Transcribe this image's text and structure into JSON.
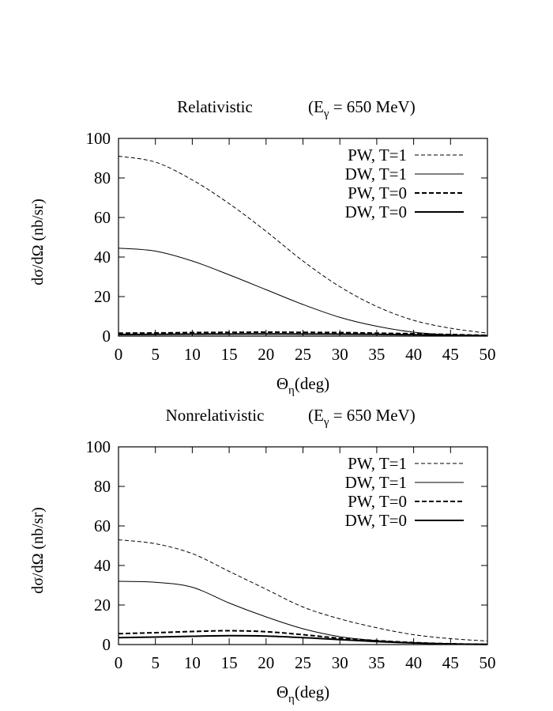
{
  "chart_data": [
    {
      "type": "line",
      "title": "Relativistic",
      "subtitle_prefix": "(E",
      "subtitle_sub": "γ",
      "subtitle_suffix": " = 650 MeV)",
      "xlabel_main": "Θ",
      "xlabel_sub": "η",
      "xlabel_unit": "(deg)",
      "ylabel": "dσ/dΩ (nb/sr)",
      "xlim": [
        0,
        50
      ],
      "ylim": [
        0,
        100
      ],
      "xticks": [
        0,
        5,
        10,
        15,
        20,
        25,
        30,
        35,
        40,
        45,
        50
      ],
      "yticks": [
        0,
        20,
        40,
        60,
        80,
        100
      ],
      "x": [
        0,
        5,
        10,
        15,
        20,
        25,
        30,
        35,
        40,
        45,
        50
      ],
      "series": [
        {
          "name": "PW, T=1",
          "style": "dashed-thin",
          "values": [
            91,
            88,
            79,
            67,
            53,
            38,
            25,
            15,
            8,
            4,
            1.5
          ]
        },
        {
          "name": "DW, T=1",
          "style": "solid-thin",
          "values": [
            44.5,
            43,
            38,
            31,
            23.5,
            16,
            9.5,
            5,
            2,
            0.6,
            0.1
          ]
        },
        {
          "name": "PW, T=0",
          "style": "dashed-thick",
          "values": [
            1.5,
            1.6,
            1.8,
            1.9,
            2.0,
            1.9,
            1.8,
            1.5,
            1.2,
            0.8,
            0.4
          ]
        },
        {
          "name": "DW, T=0",
          "style": "solid-thick",
          "values": [
            0.8,
            0.9,
            1.0,
            1.05,
            1.1,
            1.05,
            1.0,
            0.9,
            0.7,
            0.5,
            0.2
          ]
        }
      ]
    },
    {
      "type": "line",
      "title": "Nonrelativistic",
      "subtitle_prefix": "(E",
      "subtitle_sub": "γ",
      "subtitle_suffix": " = 650 MeV)",
      "xlabel_main": "Θ",
      "xlabel_sub": "η",
      "xlabel_unit": "(deg)",
      "ylabel": "dσ/dΩ (nb/sr)",
      "xlim": [
        0,
        50
      ],
      "ylim": [
        0,
        100
      ],
      "xticks": [
        0,
        5,
        10,
        15,
        20,
        25,
        30,
        35,
        40,
        45,
        50
      ],
      "yticks": [
        0,
        20,
        40,
        60,
        80,
        100
      ],
      "x": [
        0,
        5,
        10,
        15,
        20,
        25,
        30,
        35,
        40,
        45,
        50
      ],
      "series": [
        {
          "name": "PW, T=1",
          "style": "dashed-thin",
          "values": [
            53,
            51,
            46,
            37,
            28,
            19,
            13,
            8.5,
            5,
            3,
            1.8
          ]
        },
        {
          "name": "DW, T=1",
          "style": "solid-thin",
          "values": [
            32,
            31.5,
            29,
            21,
            14,
            8,
            4,
            2,
            1,
            0.4,
            0.1
          ]
        },
        {
          "name": "PW, T=0",
          "style": "dashed-thick",
          "values": [
            5.5,
            6,
            6.6,
            7,
            6.5,
            5,
            3.2,
            2,
            1,
            0.4,
            0.1
          ]
        },
        {
          "name": "DW, T=0",
          "style": "solid-thick",
          "values": [
            3.5,
            3.8,
            4.2,
            4.5,
            4.3,
            3.5,
            2.5,
            1.5,
            0.8,
            0.3,
            0.1
          ]
        }
      ]
    }
  ]
}
